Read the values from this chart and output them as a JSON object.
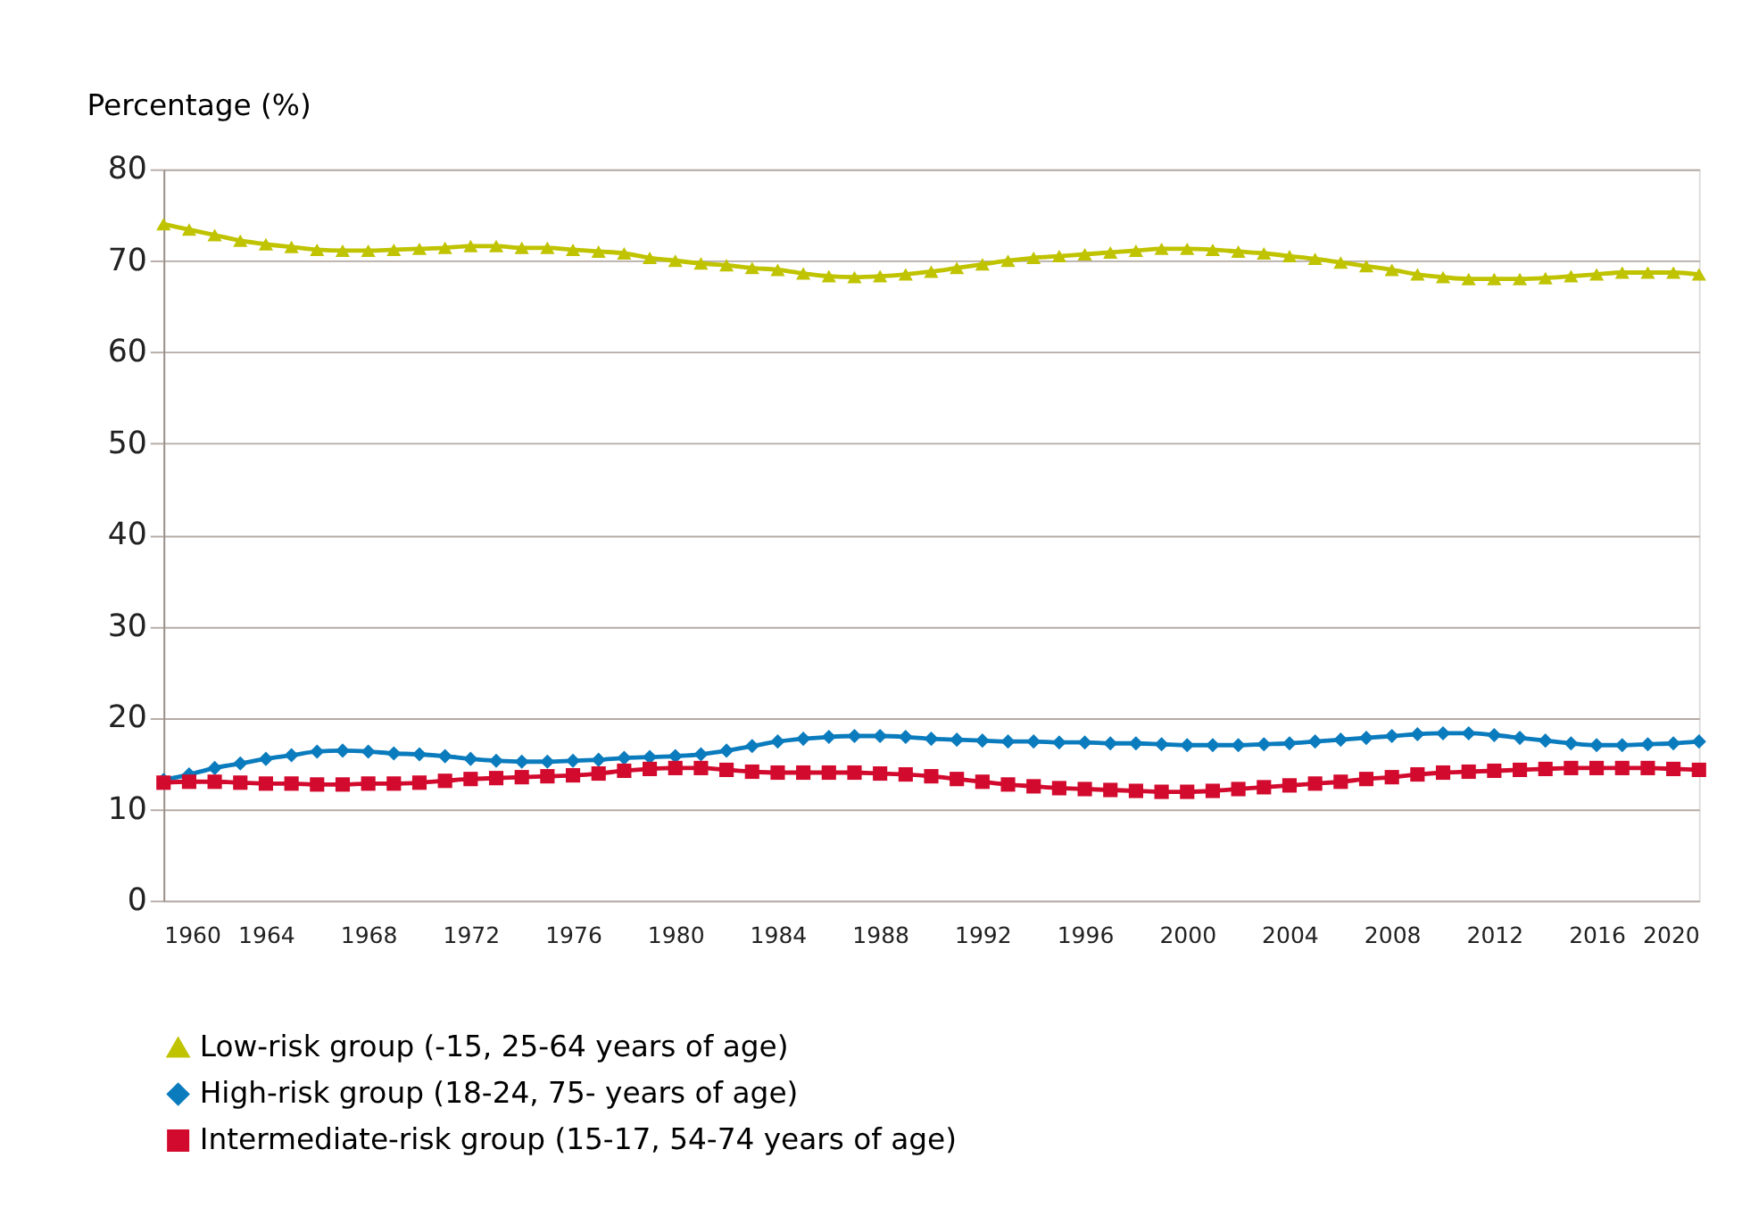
{
  "chart_data": {
    "type": "line",
    "ylabel": "Percentage (%)",
    "x": [
      1960,
      1961,
      1962,
      1963,
      1964,
      1965,
      1966,
      1967,
      1968,
      1969,
      1970,
      1971,
      1972,
      1973,
      1974,
      1975,
      1976,
      1977,
      1978,
      1979,
      1980,
      1981,
      1982,
      1983,
      1984,
      1985,
      1986,
      1987,
      1988,
      1989,
      1990,
      1991,
      1992,
      1993,
      1994,
      1995,
      1996,
      1997,
      1998,
      1999,
      2000,
      2001,
      2002,
      2003,
      2004,
      2005,
      2006,
      2007,
      2008,
      2009,
      2010,
      2011,
      2012,
      2013,
      2014,
      2015,
      2016,
      2017,
      2018,
      2019,
      2020
    ],
    "series": [
      {
        "name": "Low-risk group (-15, 25-64 years of age)",
        "color": "#bfc300",
        "marker": "triangle",
        "values": [
          74.0,
          73.4,
          72.8,
          72.2,
          71.8,
          71.5,
          71.2,
          71.1,
          71.1,
          71.2,
          71.3,
          71.4,
          71.6,
          71.6,
          71.4,
          71.4,
          71.2,
          71.0,
          70.8,
          70.3,
          70.0,
          69.7,
          69.5,
          69.2,
          69.0,
          68.6,
          68.3,
          68.2,
          68.3,
          68.5,
          68.8,
          69.2,
          69.6,
          70.0,
          70.3,
          70.5,
          70.7,
          70.9,
          71.1,
          71.3,
          71.3,
          71.2,
          71.0,
          70.8,
          70.5,
          70.2,
          69.8,
          69.4,
          69.0,
          68.5,
          68.2,
          68.0,
          68.0,
          68.0,
          68.1,
          68.3,
          68.5,
          68.7,
          68.7,
          68.7,
          68.5
        ]
      },
      {
        "name": "High-risk group (18-24, 75- years of age)",
        "color": "#0a7bbd",
        "marker": "diamond",
        "values": [
          13.2,
          13.8,
          14.5,
          15.0,
          15.5,
          15.9,
          16.3,
          16.4,
          16.3,
          16.1,
          16.0,
          15.8,
          15.5,
          15.3,
          15.2,
          15.2,
          15.3,
          15.4,
          15.6,
          15.7,
          15.8,
          16.0,
          16.4,
          16.9,
          17.4,
          17.7,
          17.9,
          18.0,
          18.0,
          17.9,
          17.7,
          17.6,
          17.5,
          17.4,
          17.4,
          17.3,
          17.3,
          17.2,
          17.2,
          17.1,
          17.0,
          17.0,
          17.0,
          17.1,
          17.2,
          17.4,
          17.6,
          17.8,
          18.0,
          18.2,
          18.3,
          18.3,
          18.1,
          17.8,
          17.5,
          17.2,
          17.0,
          17.0,
          17.1,
          17.2,
          17.4
        ]
      },
      {
        "name": "Intermediate-risk group (15-17, 54-74 years of age)",
        "color": "#d20a2e",
        "marker": "square",
        "values": [
          12.9,
          13.0,
          13.0,
          12.9,
          12.8,
          12.8,
          12.7,
          12.7,
          12.8,
          12.8,
          12.9,
          13.1,
          13.3,
          13.4,
          13.5,
          13.6,
          13.7,
          13.9,
          14.2,
          14.4,
          14.5,
          14.5,
          14.3,
          14.1,
          14.0,
          14.0,
          14.0,
          14.0,
          13.9,
          13.8,
          13.6,
          13.3,
          13.0,
          12.7,
          12.5,
          12.3,
          12.2,
          12.1,
          12.0,
          11.9,
          11.9,
          12.0,
          12.2,
          12.4,
          12.6,
          12.8,
          13.0,
          13.3,
          13.5,
          13.8,
          14.0,
          14.1,
          14.2,
          14.3,
          14.4,
          14.5,
          14.5,
          14.5,
          14.5,
          14.4,
          14.3
        ]
      }
    ],
    "xlim": [
      1960,
      2020
    ],
    "xticks": [
      1960,
      1964,
      1968,
      1972,
      1976,
      1980,
      1984,
      1988,
      1992,
      1996,
      2000,
      2004,
      2008,
      2012,
      2016,
      2020
    ],
    "ylim": [
      0,
      80
    ],
    "yticks": [
      0,
      10,
      20,
      30,
      40,
      50,
      60,
      70,
      80
    ],
    "grid": "y",
    "legend": "bottom",
    "line_style": "solid"
  }
}
